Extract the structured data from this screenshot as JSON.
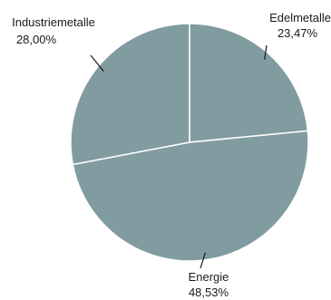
{
  "chart_data": {
    "type": "pie",
    "slices": [
      {
        "label": "Edelmetalle",
        "value": 23.47,
        "value_label": "23,47%",
        "color": "#809ca1"
      },
      {
        "label": "Energie",
        "value": 48.53,
        "value_label": "48,53%",
        "color": "#809ca1"
      },
      {
        "label": "Industriemetalle",
        "value": 28.0,
        "value_label": "28,00%",
        "color": "#809ca1"
      }
    ],
    "slice_border_color": "#ffffff",
    "leader_line_color": "#1a1a1a",
    "start_angle": "12 o'clock",
    "direction": "clockwise",
    "legend": "none"
  }
}
